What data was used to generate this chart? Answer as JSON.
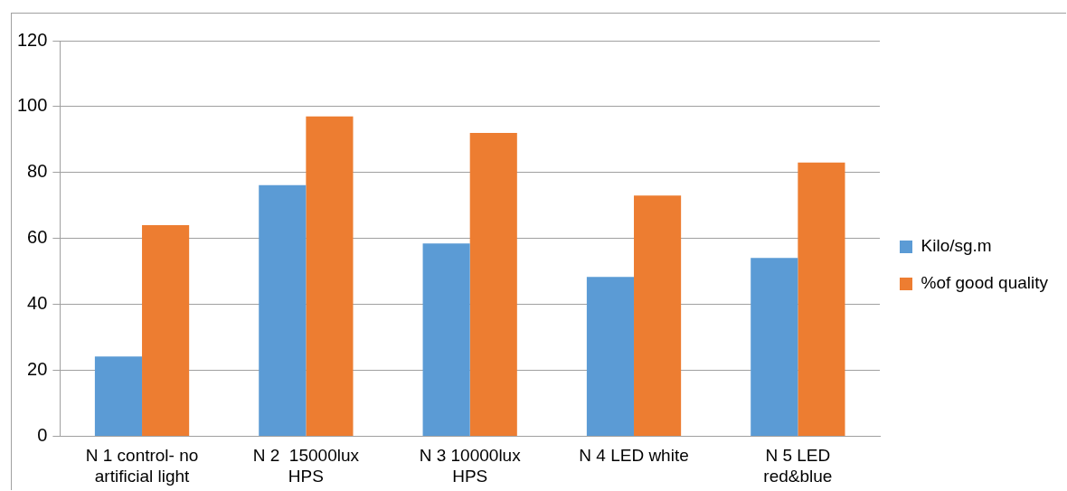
{
  "chart_data": {
    "type": "bar",
    "categories": [
      "N 1 control- no artificial light",
      "N 2  15000lux HPS",
      "N 3 10000lux HPS",
      "N 4 LED white",
      "N 5 LED red&blue"
    ],
    "series": [
      {
        "name": "Kilo/sg.m",
        "color": "#5b9bd5",
        "values": [
          24.2,
          76.2,
          58.5,
          48.3,
          54.1
        ]
      },
      {
        "name": "%of good quality",
        "color": "#ed7d31",
        "values": [
          64,
          97,
          92,
          73,
          83
        ]
      }
    ],
    "ylim": [
      0,
      120
    ],
    "yticks": [
      0,
      20,
      40,
      60,
      80,
      100,
      120
    ],
    "grid": "y",
    "legend": "right"
  }
}
